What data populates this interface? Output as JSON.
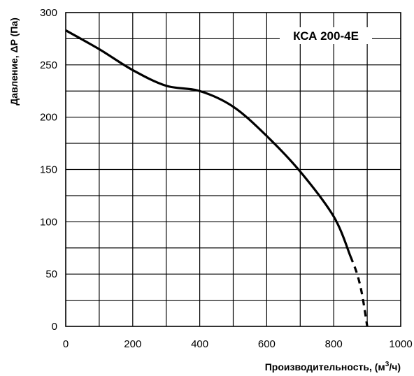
{
  "chart_data": {
    "type": "line",
    "title": "",
    "model_label": "КСА 200-4Е",
    "xlabel": "Производительность, (м",
    "xlabel_sup": "3",
    "xlabel_tail": "/ч)",
    "ylabel": "Давление, ΔP (Па)",
    "xlim": [
      0,
      1000
    ],
    "ylim": [
      0,
      300
    ],
    "x_ticks": [
      "0",
      "200",
      "400",
      "600",
      "800",
      "1000"
    ],
    "y_ticks": [
      "0",
      "50",
      "100",
      "150",
      "200",
      "250",
      "300"
    ],
    "grid": true,
    "series": [
      {
        "style": "solid",
        "x": [
          0,
          100,
          200,
          300,
          400,
          500,
          600,
          700,
          800,
          850
        ],
        "y": [
          283,
          265,
          245,
          230,
          225,
          210,
          182,
          148,
          105,
          67
        ]
      },
      {
        "style": "dashed",
        "x": [
          850,
          870,
          885,
          900
        ],
        "y": [
          67,
          50,
          30,
          0
        ]
      }
    ],
    "colors": {
      "line": "#000000",
      "grid": "#000000",
      "background": "#ffffff"
    }
  }
}
